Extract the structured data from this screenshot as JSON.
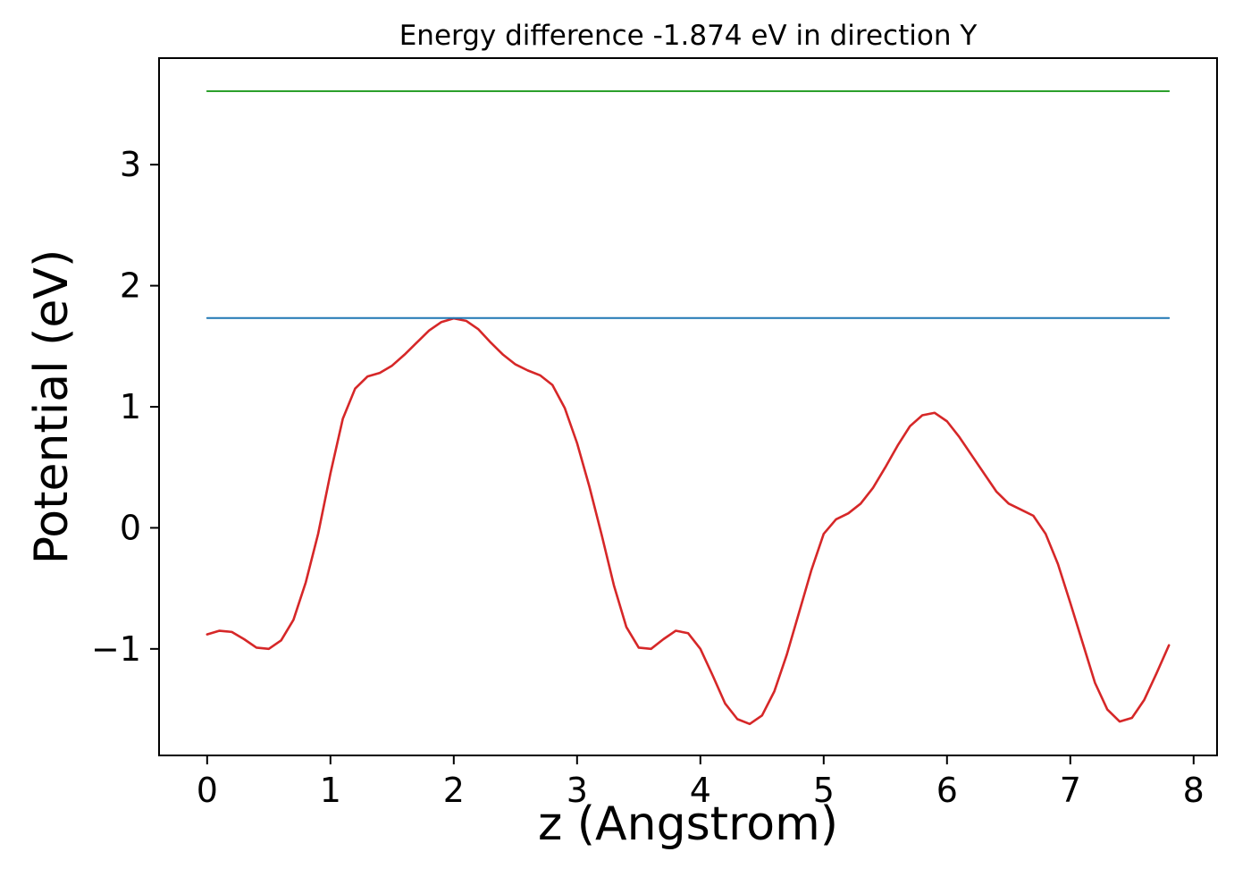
{
  "chart_data": {
    "type": "line",
    "title": "Energy difference -1.874 eV in direction Y",
    "xlabel": "z (Angstrom)",
    "ylabel": "Potential (eV)",
    "xlim": [
      -0.39,
      8.19
    ],
    "ylim": [
      -1.88,
      3.88
    ],
    "xticks": [
      0,
      1,
      2,
      3,
      4,
      5,
      6,
      7,
      8
    ],
    "yticks": [
      -1,
      0,
      1,
      2,
      3
    ],
    "grid": false,
    "legend": "none",
    "series": [
      {
        "name": "potential-profile",
        "color": "#d62728",
        "width": 2.6,
        "x": [
          0.0,
          0.1,
          0.2,
          0.3,
          0.4,
          0.5,
          0.6,
          0.7,
          0.8,
          0.9,
          1.0,
          1.1,
          1.2,
          1.3,
          1.4,
          1.5,
          1.6,
          1.7,
          1.8,
          1.9,
          2.0,
          2.1,
          2.2,
          2.3,
          2.4,
          2.5,
          2.6,
          2.7,
          2.8,
          2.9,
          3.0,
          3.1,
          3.2,
          3.3,
          3.4,
          3.5,
          3.6,
          3.7,
          3.8,
          3.9,
          4.0,
          4.1,
          4.2,
          4.3,
          4.4,
          4.5,
          4.6,
          4.7,
          4.8,
          4.9,
          5.0,
          5.1,
          5.2,
          5.3,
          5.4,
          5.5,
          5.6,
          5.7,
          5.8,
          5.9,
          6.0,
          6.1,
          6.2,
          6.3,
          6.4,
          6.5,
          6.6,
          6.7,
          6.8,
          6.9,
          7.0,
          7.1,
          7.2,
          7.3,
          7.4,
          7.5,
          7.6,
          7.7,
          7.8
        ],
        "y": [
          -0.88,
          -0.85,
          -0.86,
          -0.92,
          -0.99,
          -1.0,
          -0.93,
          -0.76,
          -0.45,
          -0.05,
          0.45,
          0.9,
          1.15,
          1.25,
          1.28,
          1.34,
          1.43,
          1.53,
          1.63,
          1.7,
          1.73,
          1.71,
          1.64,
          1.53,
          1.43,
          1.35,
          1.3,
          1.26,
          1.18,
          0.99,
          0.7,
          0.34,
          -0.06,
          -0.48,
          -0.82,
          -0.99,
          -1.0,
          -0.92,
          -0.85,
          -0.87,
          -1.0,
          -1.22,
          -1.45,
          -1.58,
          -1.62,
          -1.55,
          -1.35,
          -1.05,
          -0.7,
          -0.35,
          -0.05,
          0.07,
          0.12,
          0.2,
          0.33,
          0.5,
          0.68,
          0.84,
          0.93,
          0.95,
          0.88,
          0.75,
          0.6,
          0.45,
          0.3,
          0.2,
          0.15,
          0.1,
          -0.05,
          -0.3,
          -0.62,
          -0.95,
          -1.28,
          -1.5,
          -1.6,
          -1.57,
          -1.42,
          -1.2,
          -0.97
        ]
      },
      {
        "name": "level-blue",
        "color": "#1f77b4",
        "width": 2.0,
        "x": [
          0.0,
          7.8
        ],
        "y": [
          1.733,
          1.733
        ]
      },
      {
        "name": "level-green",
        "color": "#2ca02c",
        "width": 2.0,
        "x": [
          0.0,
          7.8
        ],
        "y": [
          3.607,
          3.607
        ]
      }
    ]
  }
}
